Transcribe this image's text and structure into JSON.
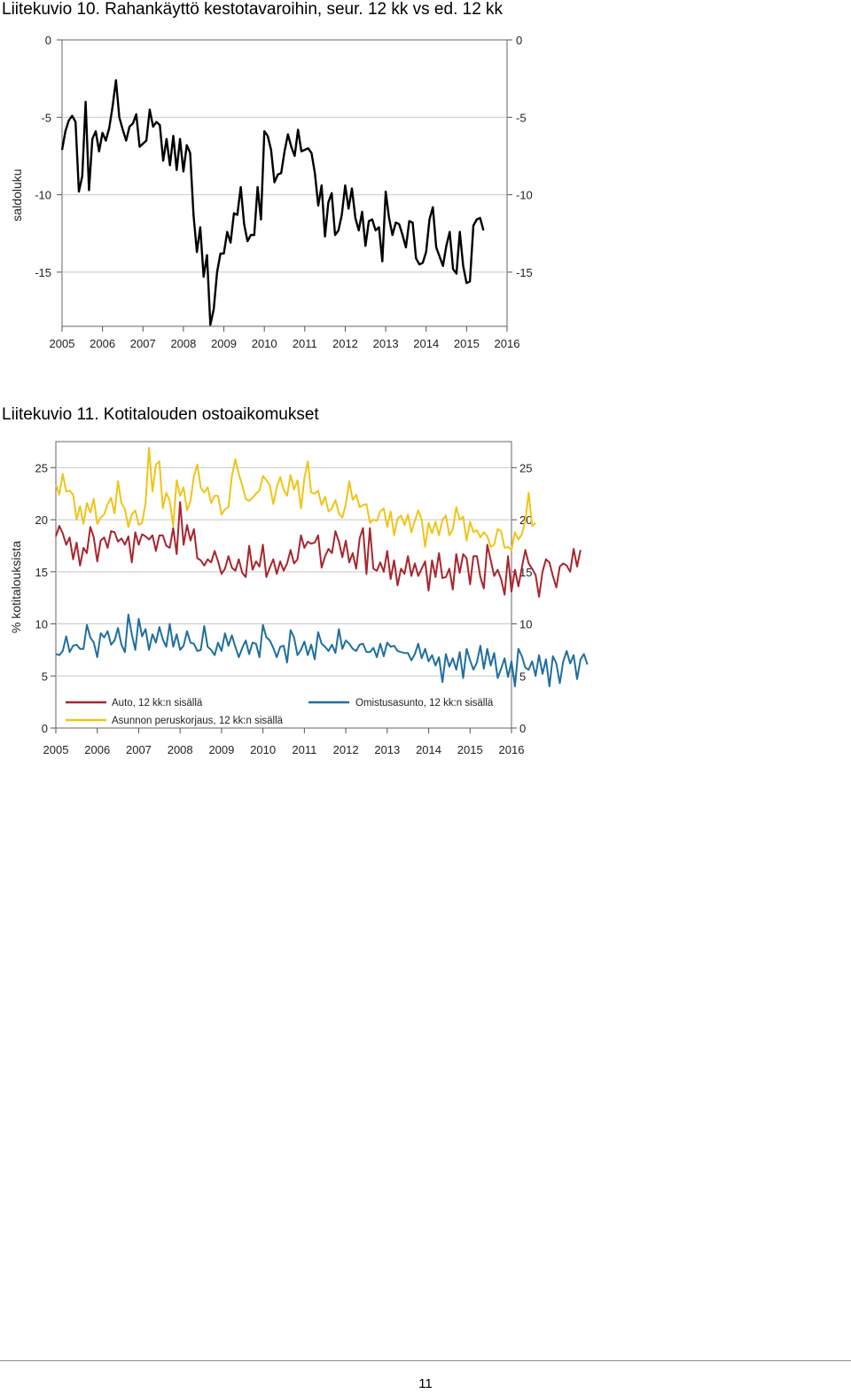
{
  "figure1": {
    "title": "Liitekuvio 10. Rahankäyttö kestotavaroihin, seur. 12 kk vs ed. 12 kk"
  },
  "figure2": {
    "title": "Liitekuvio 11. Kotitalouden ostoaikomukset"
  },
  "footer": {
    "page_number": "11"
  },
  "chart_data": [
    {
      "type": "line",
      "title": "Liitekuvio 10. Rahankäyttö kestotavaroihin, seur. 12 kk vs ed. 12 kk",
      "xlabel": "",
      "ylabel": "saldoluku",
      "xlim": [
        2005,
        2016
      ],
      "ylim": [
        -18.5,
        0
      ],
      "x_ticks": [
        "2005",
        "2006",
        "2007",
        "2008",
        "2009",
        "2010",
        "2011",
        "2012",
        "2013",
        "2014",
        "2015",
        "2016"
      ],
      "y_ticks": [
        0,
        -5,
        -10,
        -15
      ],
      "y_tick_labels": [
        "0",
        "-5",
        "-10",
        "-15"
      ],
      "grid": "horizontal",
      "x_start": 2005.0,
      "x_step": 0.08333,
      "series": [
        {
          "color": "#000000",
          "values": [
            -7.1,
            -5.9,
            -5.2,
            -4.9,
            -5.3,
            -9.8,
            -8.8,
            -4.0,
            -9.7,
            -6.4,
            -5.9,
            -7.2,
            -6.0,
            -6.5,
            -5.7,
            -4.3,
            -2.6,
            -5.0,
            -5.8,
            -6.5,
            -5.6,
            -5.4,
            -4.8,
            -6.9,
            -6.7,
            -6.5,
            -4.5,
            -5.6,
            -5.3,
            -5.5,
            -7.8,
            -6.4,
            -8.1,
            -6.2,
            -8.4,
            -6.4,
            -8.5,
            -6.8,
            -7.3,
            -11.3,
            -13.7,
            -12.1,
            -15.3,
            -13.9,
            -18.4,
            -17.4,
            -15.0,
            -13.8,
            -13.8,
            -12.4,
            -13.1,
            -11.2,
            -11.3,
            -9.5,
            -11.9,
            -13.0,
            -12.6,
            -12.6,
            -9.5,
            -11.6,
            -5.9,
            -6.2,
            -7.1,
            -9.2,
            -8.7,
            -8.6,
            -7.2,
            -6.1,
            -6.9,
            -7.5,
            -5.8,
            -7.2,
            -7.1,
            -7.0,
            -7.3,
            -8.6,
            -10.7,
            -9.4,
            -12.7,
            -10.5,
            -9.9,
            -12.6,
            -12.3,
            -11.3,
            -9.4,
            -10.9,
            -9.6,
            -11.5,
            -12.3,
            -11.1,
            -13.3,
            -11.7,
            -11.6,
            -12.3,
            -12.1,
            -14.3,
            -9.8,
            -11.5,
            -12.6,
            -11.8,
            -11.9,
            -12.6,
            -13.4,
            -11.7,
            -11.8,
            -14.1,
            -14.5,
            -14.4,
            -13.7,
            -11.6,
            -10.8,
            -13.4,
            -14.0,
            -14.6,
            -13.3,
            -12.4,
            -14.8,
            -15.1,
            -12.4,
            -14.6,
            -15.7,
            -15.6,
            -12.0,
            -11.6,
            -11.5,
            -12.3
          ]
        }
      ]
    },
    {
      "type": "line",
      "title": "Liitekuvio 11. Kotitalouden ostoaikomukset",
      "xlabel": "",
      "ylabel": "% kotitalouksista",
      "xlim": [
        2005,
        2016
      ],
      "ylim": [
        0,
        27.5
      ],
      "x_ticks": [
        "2005",
        "2006",
        "2007",
        "2008",
        "2009",
        "2010",
        "2011",
        "2012",
        "2013",
        "2014",
        "2015",
        "2016"
      ],
      "y_ticks": [
        0,
        5,
        10,
        15,
        20,
        25
      ],
      "y_tick_labels": [
        "0",
        "5",
        "10",
        "15",
        "20",
        "25"
      ],
      "grid": "horizontal",
      "legend_position": "bottom-inside",
      "x_start": 2005.0,
      "x_step": 0.08333,
      "series": [
        {
          "name": "Auto, 12 kk:n sisällä",
          "color": "#a8262e",
          "values": [
            18.4,
            19.4,
            18.7,
            17.6,
            18.3,
            16.2,
            17.8,
            15.6,
            17.3,
            16.8,
            19.3,
            18.3,
            16.0,
            18.0,
            18.3,
            17.3,
            18.9,
            18.8,
            17.9,
            18.2,
            17.6,
            18.4,
            15.9,
            18.8,
            17.6,
            18.6,
            18.4,
            18.1,
            18.5,
            17.0,
            18.5,
            18.5,
            17.5,
            17.3,
            19.2,
            16.7,
            21.7,
            17.6,
            19.5,
            18.0,
            19.1,
            16.3,
            16.1,
            15.6,
            16.2,
            15.9,
            17.0,
            16.0,
            14.8,
            15.3,
            16.5,
            15.4,
            15.1,
            16.2,
            14.9,
            14.5,
            17.5,
            15.2,
            16.0,
            15.5,
            17.6,
            14.5,
            15.4,
            16.2,
            14.8,
            16.0,
            15.1,
            15.8,
            17.1,
            15.8,
            16.2,
            18.5,
            17.3,
            17.9,
            17.7,
            17.8,
            18.5,
            15.4,
            16.5,
            17.2,
            16.8,
            18.9,
            17.9,
            16.4,
            18.0,
            15.9,
            16.8,
            15.3,
            18.2,
            19.2,
            14.8,
            19.2,
            15.3,
            15.1,
            15.9,
            15.0,
            17.0,
            14.3,
            16.1,
            13.7,
            15.3,
            14.8,
            16.5,
            14.6,
            15.8,
            14.6,
            15.3,
            16.0,
            13.2,
            16.1,
            14.5,
            16.8,
            14.4,
            14.5,
            15.3,
            13.3,
            16.7,
            14.9,
            16.7,
            16.3,
            13.8,
            16.5,
            16.5,
            14.5,
            13.4,
            17.6,
            16.1,
            14.6,
            15.2,
            14.3,
            12.8,
            16.5,
            13.1,
            15.2,
            13.6,
            15.4,
            17.1,
            15.8,
            15.3,
            14.7,
            12.6,
            15.0,
            16.2,
            15.9,
            14.6,
            13.5,
            15.5,
            15.8,
            15.6,
            15.0,
            17.2,
            15.5,
            17.1
          ]
        },
        {
          "name": "Omistusasunto, 12 kk:n sisällä",
          "color": "#1f6fa0",
          "values": [
            7.1,
            7.0,
            7.4,
            8.8,
            7.3,
            7.9,
            8.0,
            7.6,
            7.6,
            9.9,
            8.7,
            8.2,
            6.8,
            9.1,
            8.7,
            9.3,
            8.0,
            8.4,
            9.6,
            8.0,
            7.3,
            10.9,
            9.0,
            7.5,
            10.5,
            8.8,
            9.5,
            7.5,
            9.0,
            8.2,
            9.7,
            8.5,
            7.8,
            10.0,
            7.8,
            9.0,
            7.5,
            7.9,
            9.3,
            8.2,
            8.1,
            7.4,
            7.5,
            9.8,
            7.8,
            7.5,
            7.0,
            8.2,
            7.4,
            9.1,
            7.9,
            8.9,
            7.8,
            6.8,
            7.7,
            8.4,
            7.1,
            8.2,
            8.1,
            6.8,
            9.9,
            8.7,
            8.4,
            7.7,
            6.8,
            7.8,
            7.9,
            6.3,
            9.4,
            8.7,
            7.0,
            7.5,
            8.3,
            7.0,
            8.0,
            6.6,
            9.2,
            8.1,
            7.8,
            7.4,
            8.0,
            7.2,
            9.5,
            7.6,
            8.4,
            8.1,
            7.6,
            7.4,
            8.0,
            8.1,
            7.3,
            7.3,
            7.7,
            6.8,
            8.1,
            6.9,
            8.2,
            7.8,
            7.9,
            7.4,
            7.3,
            7.2,
            7.2,
            6.5,
            7.1,
            8.1,
            6.7,
            7.6,
            6.4,
            7.0,
            6.0,
            6.8,
            4.4,
            7.1,
            5.9,
            6.7,
            5.6,
            7.3,
            4.8,
            7.6,
            6.5,
            5.6,
            6.3,
            7.9,
            5.7,
            7.6,
            6.0,
            7.2,
            4.8,
            5.7,
            6.7,
            4.9,
            6.4,
            4.0,
            7.6,
            6.9,
            5.8,
            5.6,
            6.4,
            5.0,
            7.0,
            5.2,
            6.6,
            4.0,
            6.9,
            6.2,
            4.3,
            6.4,
            7.4,
            6.2,
            7.0,
            4.7,
            6.6,
            7.1,
            6.1
          ]
        },
        {
          "name": "Asunnon peruskorjaus, 12 kk:n sisällä",
          "color": "#f0c419",
          "values": [
            23.4,
            22.4,
            24.4,
            22.7,
            22.8,
            22.4,
            20.0,
            21.3,
            19.6,
            21.6,
            20.7,
            22.0,
            19.6,
            20.2,
            20.5,
            21.5,
            22.1,
            20.6,
            23.7,
            21.6,
            21.0,
            19.3,
            20.5,
            20.9,
            19.5,
            19.7,
            21.6,
            26.9,
            22.7,
            25.3,
            25.6,
            21.1,
            22.6,
            21.8,
            19.4,
            23.8,
            22.3,
            23.1,
            20.9,
            21.8,
            24.2,
            25.3,
            23.1,
            22.6,
            23.1,
            21.6,
            22.3,
            22.3,
            20.5,
            21.0,
            21.2,
            24.2,
            25.8,
            24.4,
            23.3,
            22.0,
            21.8,
            22.1,
            22.5,
            22.8,
            24.2,
            23.8,
            23.3,
            21.5,
            23.1,
            24.1,
            22.9,
            22.3,
            24.3,
            22.9,
            23.8,
            21.1,
            24.0,
            25.6,
            22.6,
            22.5,
            22.8,
            21.4,
            22.2,
            20.8,
            21.1,
            21.9,
            20.6,
            20.2,
            21.5,
            23.7,
            21.9,
            22.4,
            21.2,
            21.4,
            21.5,
            19.7,
            20.0,
            19.9,
            20.8,
            21.1,
            19.3,
            20.8,
            18.5,
            20.1,
            20.4,
            19.5,
            20.5,
            18.8,
            19.9,
            20.9,
            20.0,
            17.4,
            19.7,
            18.7,
            19.8,
            18.5,
            20.0,
            20.4,
            18.5,
            19.1,
            21.2,
            20.0,
            20.3,
            18.0,
            19.8,
            18.8,
            19.0,
            18.3,
            18.8,
            18.4,
            17.4,
            17.6,
            19.1,
            18.9,
            17.3,
            17.4,
            17.1,
            18.8,
            18.1,
            18.6,
            19.9,
            22.6,
            19.4,
            19.7
          ]
        }
      ]
    }
  ]
}
